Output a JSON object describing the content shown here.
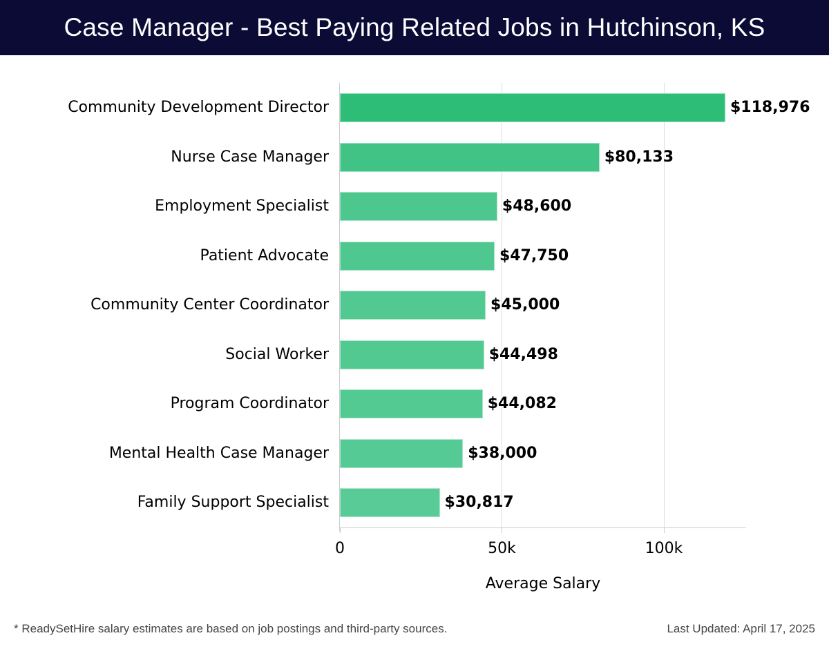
{
  "header": {
    "title": "Case Manager - Best Paying Related Jobs in Hutchinson, KS"
  },
  "chart_data": {
    "type": "bar",
    "orientation": "horizontal",
    "title": "Case Manager - Best Paying Related Jobs in Hutchinson, KS",
    "xlabel": "Average Salary",
    "ylabel": "",
    "xlim": [
      0,
      125000
    ],
    "grid": true,
    "legend": null,
    "x_ticks": [
      0,
      50000,
      100000
    ],
    "x_tick_labels": [
      "0",
      "50k",
      "100k"
    ],
    "categories": [
      "Community Development Director",
      "Nurse Case Manager",
      "Employment Specialist",
      "Patient Advocate",
      "Community Center Coordinator",
      "Social Worker",
      "Program Coordinator",
      "Mental Health Case Manager",
      "Family Support Specialist"
    ],
    "values": [
      118976,
      80133,
      48600,
      47750,
      45000,
      44498,
      44082,
      38000,
      30817
    ],
    "value_labels": [
      "$118,976",
      "$80,133",
      "$48,600",
      "$47,750",
      "$45,000",
      "$44,498",
      "$44,082",
      "$38,000",
      "$30,817"
    ],
    "colors": [
      "#2dbd76",
      "#40c385",
      "#4dc78d",
      "#4fc88f",
      "#51c991",
      "#52c991",
      "#53ca92",
      "#55ca94",
      "#58cb96"
    ]
  },
  "footer": {
    "note": "* ReadySetHire salary estimates are based on job postings and third-party sources.",
    "updated": "Last Updated: April 17, 2025"
  }
}
